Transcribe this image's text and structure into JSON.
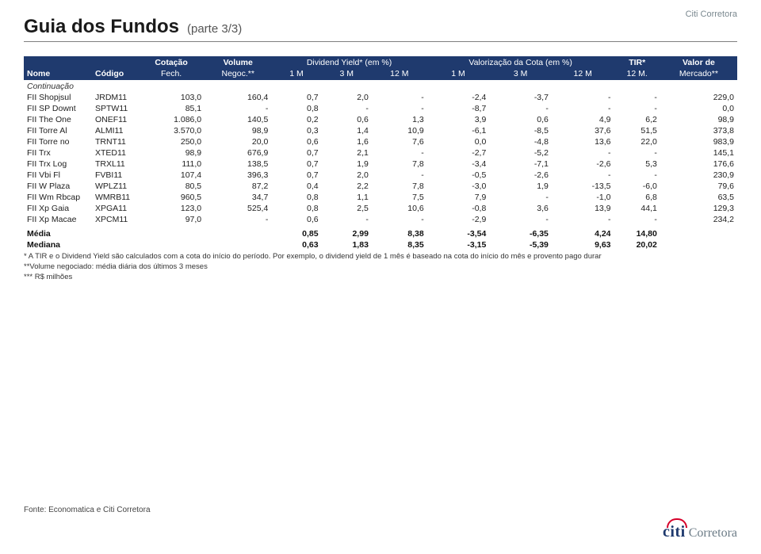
{
  "brand_top": "Citi Corretora",
  "title": "Guia dos Fundos",
  "subtitle": "(parte 3/3)",
  "continuacao": "Continuação",
  "header": {
    "nome": "Nome",
    "codigo": "Código",
    "cotacao": "Cotação",
    "fech": "Fech.",
    "volume": "Volume",
    "negoc": "Negoc.**",
    "div_yield": "Dividend Yield* (em %)",
    "valorizacao": "Valorização da Cota (em %)",
    "tir": "TIR*",
    "m12": "12 M.",
    "valor": "Valor de",
    "mercado": "Mercado**",
    "m1": "1 M",
    "m3": "3 M",
    "m12s": "12 M"
  },
  "rows": [
    {
      "nome": "FII Shopjsul",
      "cod": "JRDM11",
      "cot": "103,0",
      "vol": "160,4",
      "d1": "0,7",
      "d3": "2,0",
      "d12": "-",
      "v1": "-2,4",
      "v3": "-3,7",
      "v12": "-",
      "tir": "-",
      "mkt": "229,0"
    },
    {
      "nome": "FII SP Downt",
      "cod": "SPTW11",
      "cot": "85,1",
      "vol": "-",
      "d1": "0,8",
      "d3": "-",
      "d12": "-",
      "v1": "-8,7",
      "v3": "-",
      "v12": "-",
      "tir": "-",
      "mkt": "0,0"
    },
    {
      "nome": "FII The One",
      "cod": "ONEF11",
      "cot": "1.086,0",
      "vol": "140,5",
      "d1": "0,2",
      "d3": "0,6",
      "d12": "1,3",
      "v1": "3,9",
      "v3": "0,6",
      "v12": "4,9",
      "tir": "6,2",
      "mkt": "98,9"
    },
    {
      "nome": "FII Torre Al",
      "cod": "ALMI11",
      "cot": "3.570,0",
      "vol": "98,9",
      "d1": "0,3",
      "d3": "1,4",
      "d12": "10,9",
      "v1": "-6,1",
      "v3": "-8,5",
      "v12": "37,6",
      "tir": "51,5",
      "mkt": "373,8"
    },
    {
      "nome": "FII Torre no",
      "cod": "TRNT11",
      "cot": "250,0",
      "vol": "20,0",
      "d1": "0,6",
      "d3": "1,6",
      "d12": "7,6",
      "v1": "0,0",
      "v3": "-4,8",
      "v12": "13,6",
      "tir": "22,0",
      "mkt": "983,9"
    },
    {
      "nome": "FII Trx",
      "cod": "XTED11",
      "cot": "98,9",
      "vol": "676,9",
      "d1": "0,7",
      "d3": "2,1",
      "d12": "-",
      "v1": "-2,7",
      "v3": "-5,2",
      "v12": "-",
      "tir": "-",
      "mkt": "145,1"
    },
    {
      "nome": "FII Trx Log",
      "cod": "TRXL11",
      "cot": "111,0",
      "vol": "138,5",
      "d1": "0,7",
      "d3": "1,9",
      "d12": "7,8",
      "v1": "-3,4",
      "v3": "-7,1",
      "v12": "-2,6",
      "tir": "5,3",
      "mkt": "176,6"
    },
    {
      "nome": "FII Vbi Fl",
      "cod": "FVBI11",
      "cot": "107,4",
      "vol": "396,3",
      "d1": "0,7",
      "d3": "2,0",
      "d12": "-",
      "v1": "-0,5",
      "v3": "-2,6",
      "v12": "-",
      "tir": "-",
      "mkt": "230,9"
    },
    {
      "nome": "FII W Plaza",
      "cod": "WPLZ11",
      "cot": "80,5",
      "vol": "87,2",
      "d1": "0,4",
      "d3": "2,2",
      "d12": "7,8",
      "v1": "-3,0",
      "v3": "1,9",
      "v12": "-13,5",
      "tir": "-6,0",
      "mkt": "79,6"
    },
    {
      "nome": "FII Wm Rbcap",
      "cod": "WMRB11",
      "cot": "960,5",
      "vol": "34,7",
      "d1": "0,8",
      "d3": "1,1",
      "d12": "7,5",
      "v1": "7,9",
      "v3": "-",
      "v12": "-1,0",
      "tir": "6,8",
      "mkt": "63,5"
    },
    {
      "nome": "FII Xp Gaia",
      "cod": "XPGA11",
      "cot": "123,0",
      "vol": "525,4",
      "d1": "0,8",
      "d3": "2,5",
      "d12": "10,6",
      "v1": "-0,8",
      "v3": "3,6",
      "v12": "13,9",
      "tir": "44,1",
      "mkt": "129,3"
    },
    {
      "nome": "FII Xp Macae",
      "cod": "XPCM11",
      "cot": "97,0",
      "vol": "-",
      "d1": "0,6",
      "d3": "-",
      "d12": "-",
      "v1": "-2,9",
      "v3": "-",
      "v12": "-",
      "tir": "-",
      "mkt": "234,2"
    }
  ],
  "summary": [
    {
      "label": "Média",
      "d1": "0,85",
      "d3": "2,99",
      "d12": "8,38",
      "v1": "-3,54",
      "v3": "-6,35",
      "v12": "4,24",
      "tir": "14,80"
    },
    {
      "label": "Mediana",
      "d1": "0,63",
      "d3": "1,83",
      "d12": "8,35",
      "v1": "-3,15",
      "v3": "-5,39",
      "v12": "9,63",
      "tir": "20,02"
    }
  ],
  "footnotes": [
    "* A TIR e o Dividend Yield são calculados com a cota do início do período. Por exemplo, o dividend yield de 1 mês é baseado na cota do início do mês e provento pago durar",
    "**Volume negociado: média diária dos últimos 3 meses",
    "*** R$ milhões"
  ],
  "source": "Fonte: Economatica e Citi Corretora",
  "brand_bottom_main": "citi",
  "brand_bottom_sub": "Corretora",
  "colors": {
    "header_bg": "#1f3a6e",
    "header_fg": "#ffffff",
    "title_fg": "#1a1a1a",
    "text_fg": "#222222",
    "brand_arc": "#d6002a",
    "brand_sub": "#6b7b86"
  }
}
